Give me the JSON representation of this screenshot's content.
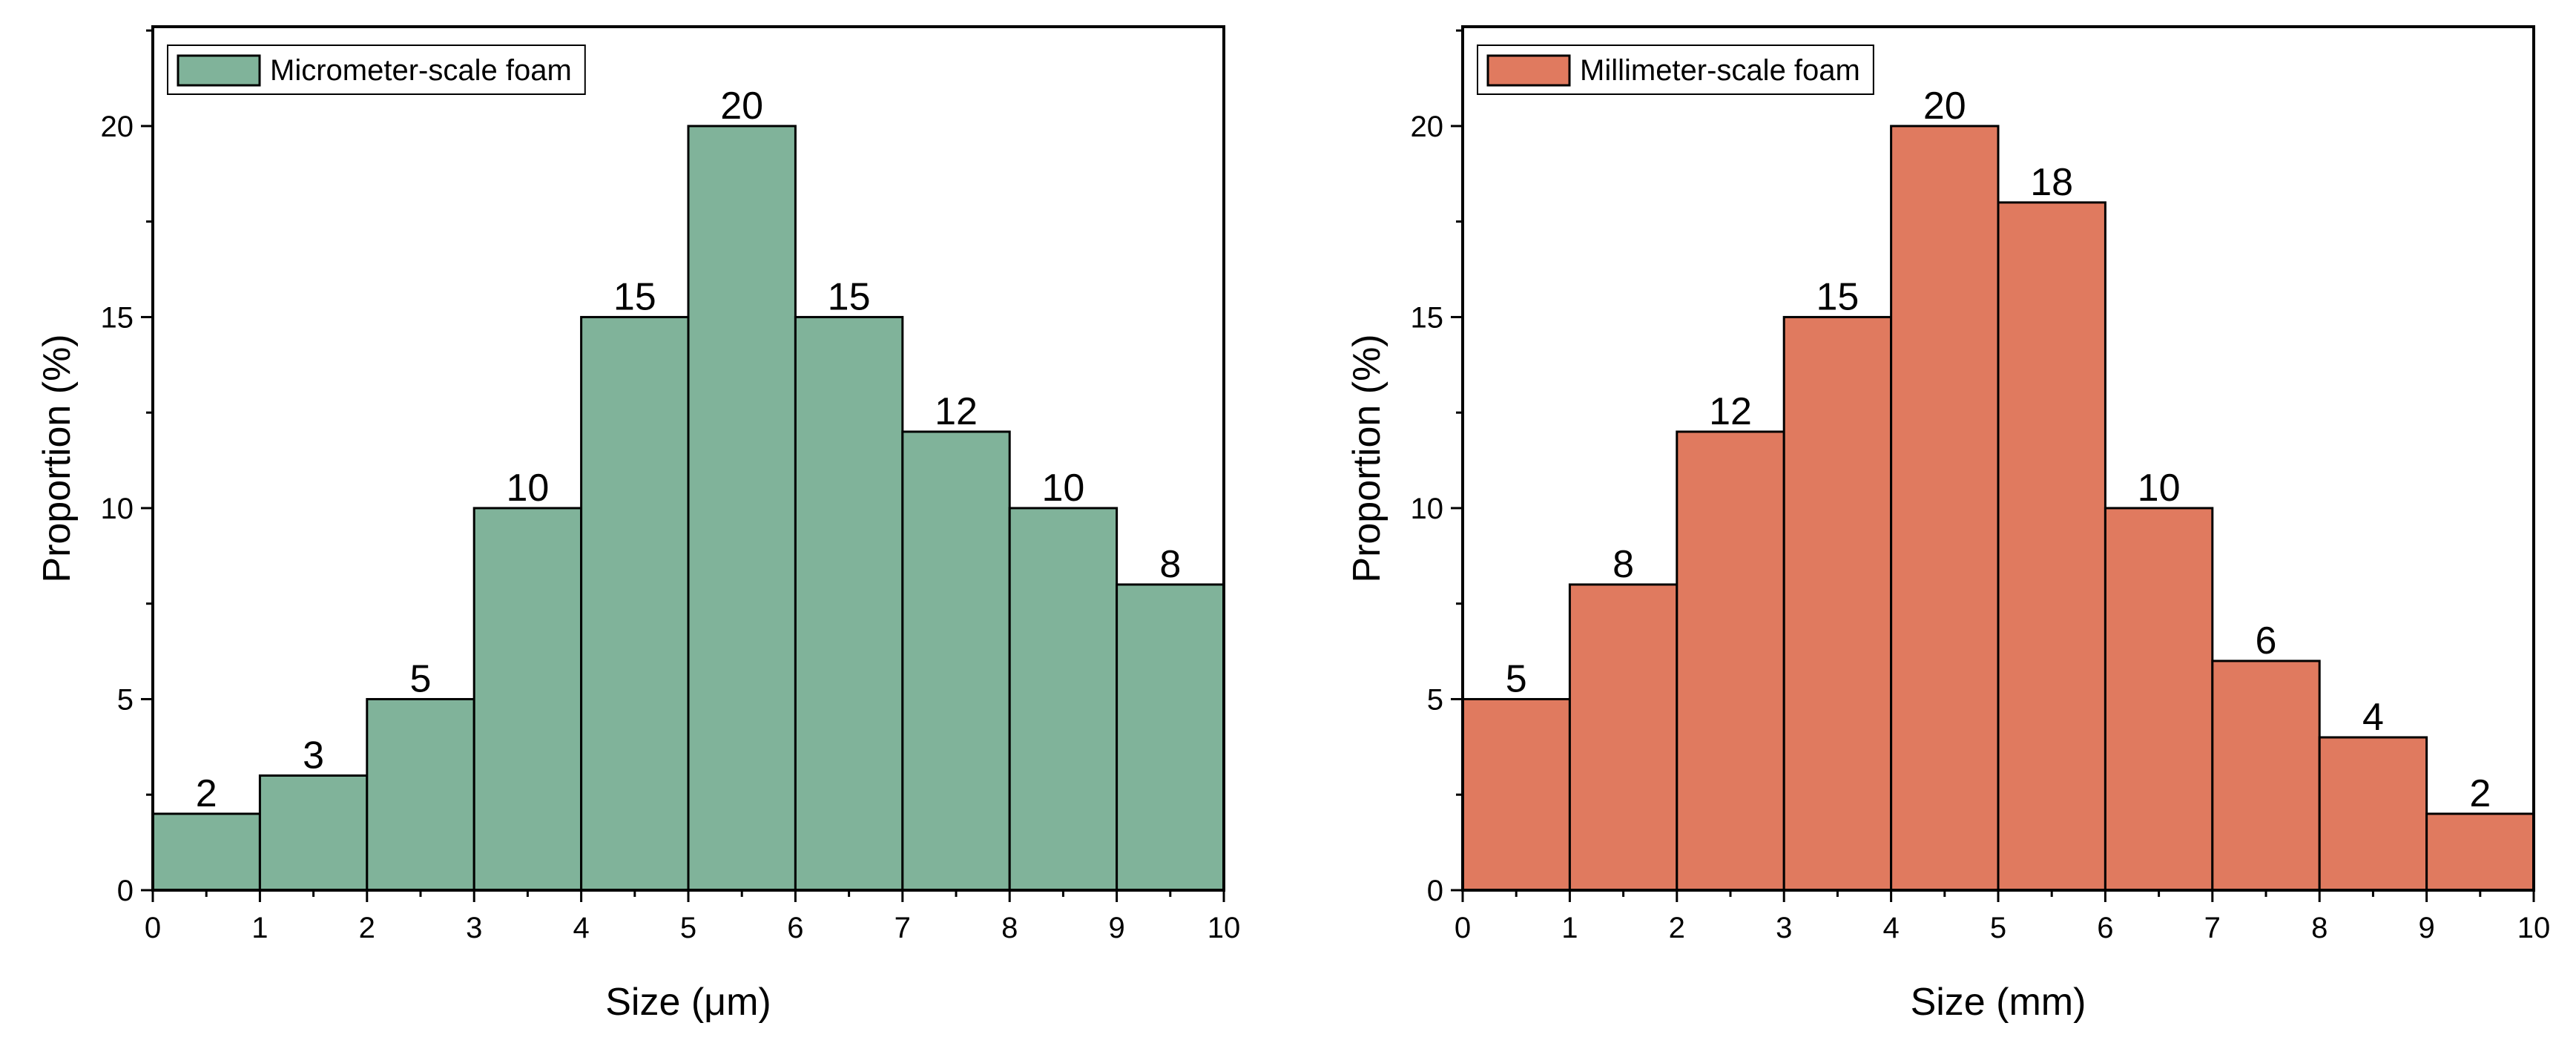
{
  "chart_data": [
    {
      "type": "bar",
      "title": "",
      "xlabel": "Size (μm)",
      "ylabel": "Proportion (%)",
      "xlim": [
        0,
        10
      ],
      "ylim": [
        0,
        22.6
      ],
      "x_ticks": [
        "0",
        "1",
        "2",
        "3",
        "4",
        "5",
        "6",
        "7",
        "8",
        "9",
        "10"
      ],
      "y_ticks": [
        "0",
        "5",
        "10",
        "15",
        "20"
      ],
      "bin_edges": [
        0,
        1,
        2,
        3,
        4,
        5,
        6,
        7,
        8,
        9,
        10
      ],
      "values": [
        2,
        3,
        5,
        10,
        15,
        20,
        15,
        12,
        10,
        8
      ],
      "data_labels": [
        "2",
        "3",
        "5",
        "10",
        "15",
        "20",
        "15",
        "12",
        "10",
        "8"
      ],
      "series_name": "Micrometer-scale foam",
      "color": "#80b39a",
      "legend_position": "top-left",
      "grid": false
    },
    {
      "type": "bar",
      "title": "",
      "xlabel": "Size (mm)",
      "ylabel": "Proportion (%)",
      "xlim": [
        0,
        10
      ],
      "ylim": [
        0,
        22.6
      ],
      "x_ticks": [
        "0",
        "1",
        "2",
        "3",
        "4",
        "5",
        "6",
        "7",
        "8",
        "9",
        "10"
      ],
      "y_ticks": [
        "0",
        "5",
        "10",
        "15",
        "20"
      ],
      "bin_edges": [
        0,
        1,
        2,
        3,
        4,
        5,
        6,
        7,
        8,
        9,
        10
      ],
      "values": [
        5,
        8,
        12,
        15,
        20,
        18,
        10,
        6,
        4,
        2
      ],
      "data_labels": [
        "5",
        "8",
        "12",
        "15",
        "20",
        "18",
        "10",
        "6",
        "4",
        "2"
      ],
      "series_name": "Millimeter-scale foam",
      "color": "#e07a5f",
      "legend_position": "top-left",
      "grid": false
    }
  ]
}
